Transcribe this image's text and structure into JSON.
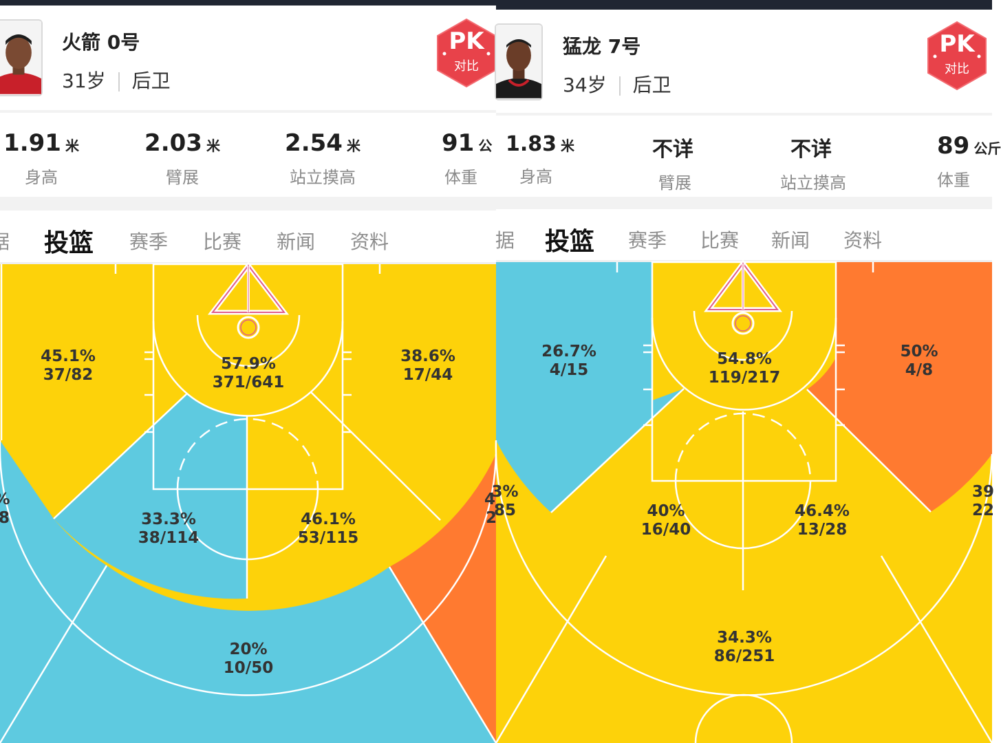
{
  "colors": {
    "hot": "#FF7A30",
    "avg": "#FDD20A",
    "cold": "#5ECAE0",
    "pk_red": "#E8424A"
  },
  "players": [
    {
      "name": "火箭 0号",
      "age": "31岁",
      "position": "后卫",
      "pk_button": {
        "main": "PK",
        "sub": "对比"
      },
      "metrics": [
        {
          "value": "1.91",
          "unit": "米",
          "label": "身高"
        },
        {
          "value": "2.03",
          "unit": "米",
          "label": "臂展"
        },
        {
          "value": "2.54",
          "unit": "米",
          "label": "站立摸高"
        },
        {
          "value": "91",
          "unit": "公",
          "label": "体重"
        }
      ],
      "tabs": [
        {
          "label": "据",
          "active": false
        },
        {
          "label": "投篮",
          "active": true
        },
        {
          "label": "赛季",
          "active": false
        },
        {
          "label": "比赛",
          "active": false
        },
        {
          "label": "新闻",
          "active": false
        },
        {
          "label": "资料",
          "active": false
        }
      ],
      "zones": {
        "restricted": {
          "pct": "57.9%",
          "frac": "371/641"
        },
        "left_mid_upper": {
          "pct": "45.1%",
          "frac": "37/82"
        },
        "right_mid_upper": {
          "pct": "38.6%",
          "frac": "17/44"
        },
        "left_paint": {
          "pct": "33.3%",
          "frac": "38/114"
        },
        "right_paint": {
          "pct": "46.1%",
          "frac": "53/115"
        },
        "left_corner3": {
          "pct": "%",
          "frac": "8"
        },
        "right_corner3": {
          "pct": "4",
          "frac": "2"
        },
        "top3": {
          "pct": "20%",
          "frac": "10/50"
        }
      }
    },
    {
      "name": "猛龙 7号",
      "age": "34岁",
      "position": "后卫",
      "pk_button": {
        "main": "PK",
        "sub": "对比"
      },
      "metrics": [
        {
          "value": "1.83",
          "unit": "米",
          "label": "身高"
        },
        {
          "value": "不详",
          "unit": "",
          "label": "臂展"
        },
        {
          "value": "不详",
          "unit": "",
          "label": "站立摸高"
        },
        {
          "value": "89",
          "unit": "公斤",
          "label": "体重"
        }
      ],
      "tabs": [
        {
          "label": "据",
          "active": false
        },
        {
          "label": "投篮",
          "active": true
        },
        {
          "label": "赛季",
          "active": false
        },
        {
          "label": "比赛",
          "active": false
        },
        {
          "label": "新闻",
          "active": false
        },
        {
          "label": "资料",
          "active": false
        }
      ],
      "zones": {
        "restricted": {
          "pct": "54.8%",
          "frac": "119/217"
        },
        "left_mid_upper": {
          "pct": "26.7%",
          "frac": "4/15"
        },
        "right_mid_upper": {
          "pct": "50%",
          "frac": "4/8"
        },
        "left_paint": {
          "pct": "40%",
          "frac": "16/40"
        },
        "right_paint": {
          "pct": "46.4%",
          "frac": "13/28"
        },
        "left_corner3": {
          "pct": "3%",
          "frac": "85"
        },
        "right_corner3": {
          "pct": "39",
          "frac": "22"
        },
        "top3": {
          "pct": "34.3%",
          "frac": "86/251"
        }
      }
    }
  ]
}
